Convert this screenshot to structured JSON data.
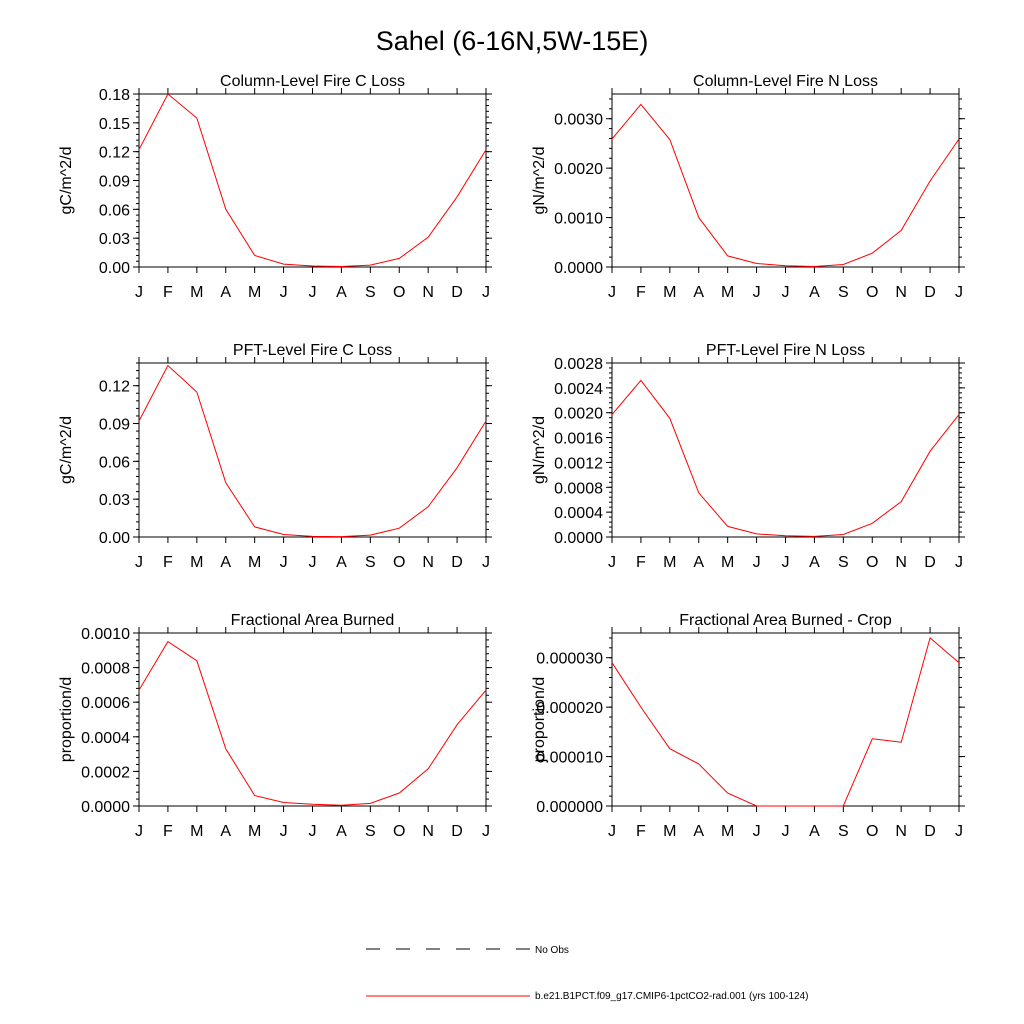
{
  "title": "Sahel (6-16N,5W-15E)",
  "legend": {
    "obs_label": "No Obs",
    "model_label": "b.e21.B1PCT.f09_g17.CMIP6-1pctCO2-rad.001 (yrs 100-124)",
    "model_color": "#ff0000",
    "obs_color": "#000000"
  },
  "chart_data": [
    {
      "type": "line",
      "title": "Column-Level Fire C Loss",
      "ylabel": "gC/m^2/d",
      "categories": [
        "J",
        "F",
        "M",
        "A",
        "M",
        "J",
        "J",
        "A",
        "S",
        "O",
        "N",
        "D",
        "J"
      ],
      "ylim": [
        0,
        0.18
      ],
      "yticks": [
        "0.00",
        "0.03",
        "0.06",
        "0.09",
        "0.12",
        "0.15",
        "0.18"
      ],
      "series": [
        {
          "values": [
            0.122,
            0.18,
            0.155,
            0.06,
            0.012,
            0.003,
            0.001,
            0.0005,
            0.002,
            0.009,
            0.031,
            0.073,
            0.122
          ]
        }
      ]
    },
    {
      "type": "line",
      "title": "Column-Level Fire N Loss",
      "ylabel": "gN/m^2/d",
      "categories": [
        "J",
        "F",
        "M",
        "A",
        "M",
        "J",
        "J",
        "A",
        "S",
        "O",
        "N",
        "D",
        "J"
      ],
      "ylim": [
        0,
        0.0035
      ],
      "yticks": [
        "0.0000",
        "0.0010",
        "0.0020",
        "0.0030"
      ],
      "series": [
        {
          "values": [
            0.00259,
            0.00329,
            0.00258,
            0.001,
            0.000225,
            7e-05,
            2.5e-05,
            1e-05,
            5e-05,
            0.00028,
            0.00074,
            0.00174,
            0.00259
          ]
        }
      ]
    },
    {
      "type": "line",
      "title": "PFT-Level Fire C Loss",
      "ylabel": "gC/m^2/d",
      "categories": [
        "J",
        "F",
        "M",
        "A",
        "M",
        "J",
        "J",
        "A",
        "S",
        "O",
        "N",
        "D",
        "J"
      ],
      "ylim": [
        0,
        0.138
      ],
      "yticks": [
        "0.00",
        "0.03",
        "0.06",
        "0.09",
        "0.12"
      ],
      "series": [
        {
          "values": [
            0.092,
            0.136,
            0.115,
            0.043,
            0.008,
            0.002,
            0.0005,
            0.0003,
            0.0015,
            0.007,
            0.024,
            0.055,
            0.092
          ]
        }
      ]
    },
    {
      "type": "line",
      "title": "PFT-Level Fire N Loss",
      "ylabel": "gN/m^2/d",
      "categories": [
        "J",
        "F",
        "M",
        "A",
        "M",
        "J",
        "J",
        "A",
        "S",
        "O",
        "N",
        "D",
        "J"
      ],
      "ylim": [
        0,
        0.0028
      ],
      "yticks": [
        "0.0000",
        "0.0004",
        "0.0008",
        "0.0012",
        "0.0016",
        "0.0020",
        "0.0024",
        "0.0028"
      ],
      "series": [
        {
          "values": [
            0.00197,
            0.00252,
            0.00191,
            0.00071,
            0.00017,
            5e-05,
            2e-05,
            1e-05,
            4e-05,
            0.00022,
            0.00057,
            0.00138,
            0.00197
          ]
        }
      ]
    },
    {
      "type": "line",
      "title": "Fractional Area Burned",
      "ylabel": "proportion/d",
      "categories": [
        "J",
        "F",
        "M",
        "A",
        "M",
        "J",
        "J",
        "A",
        "S",
        "O",
        "N",
        "D",
        "J"
      ],
      "ylim": [
        0,
        0.001
      ],
      "yticks": [
        "0.0000",
        "0.0002",
        "0.0004",
        "0.0006",
        "0.0008",
        "0.0010"
      ],
      "series": [
        {
          "values": [
            0.00067,
            0.00095,
            0.00084,
            0.00033,
            6e-05,
            2e-05,
            1e-05,
            4e-06,
            1.5e-05,
            7.5e-05,
            0.000215,
            0.00047,
            0.00067
          ]
        }
      ]
    },
    {
      "type": "line",
      "title": "Fractional Area Burned - Crop",
      "ylabel": "proportion/d",
      "categories": [
        "J",
        "F",
        "M",
        "A",
        "M",
        "J",
        "J",
        "A",
        "S",
        "O",
        "N",
        "D",
        "J"
      ],
      "ylim": [
        0,
        3.5e-05
      ],
      "yticks": [
        "0.000000",
        "0.000010",
        "0.000020",
        "0.000030"
      ],
      "series": [
        {
          "values": [
            2.9e-05,
            2e-05,
            1.16e-05,
            8.5e-06,
            2.6e-06,
            0.0,
            0.0,
            0.0,
            0.0,
            1.36e-05,
            1.29e-05,
            3.4e-05,
            2.9e-05
          ]
        }
      ]
    }
  ]
}
